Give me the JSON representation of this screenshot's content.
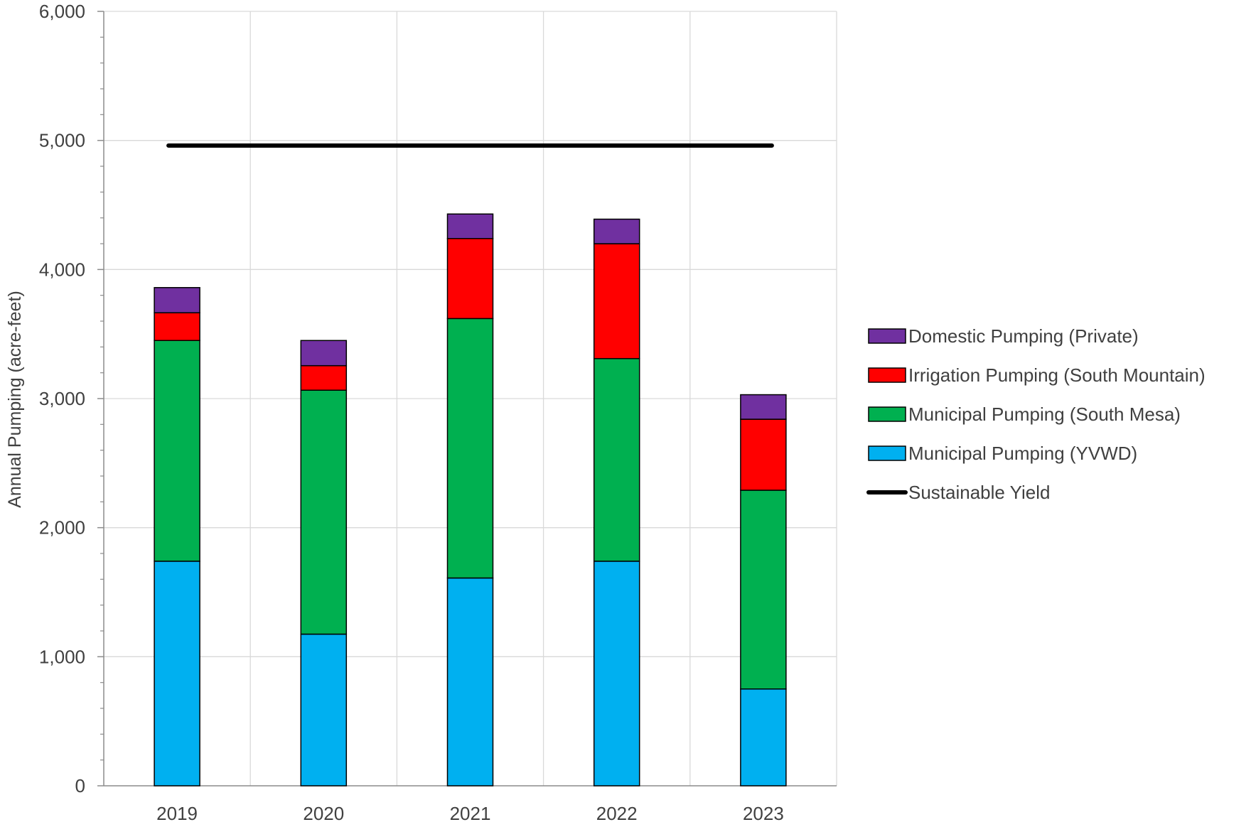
{
  "chart_data": {
    "type": "bar",
    "stacked": true,
    "categories": [
      "2019",
      "2020",
      "2021",
      "2022",
      "2023"
    ],
    "series": [
      {
        "name": "Municipal Pumping (YVWD)",
        "color": "#00B0F0",
        "values": [
          1740,
          1175,
          1610,
          1740,
          750
        ]
      },
      {
        "name": "Municipal Pumping (South Mesa)",
        "color": "#00B050",
        "values": [
          1710,
          1890,
          2010,
          1570,
          1540
        ]
      },
      {
        "name": "Irrigation Pumping (South Mountain)",
        "color": "#FF0000",
        "values": [
          215,
          190,
          620,
          890,
          550
        ]
      },
      {
        "name": "Domestic Pumping (Private)",
        "color": "#7030A0",
        "values": [
          195,
          195,
          190,
          190,
          190
        ]
      }
    ],
    "reference_line": {
      "name": "Sustainable Yield",
      "value": 4960,
      "color": "#000000"
    },
    "ylabel": "Annual Pumping (acre-feet)",
    "xlabel": "",
    "title": "",
    "ylim": [
      0,
      6000
    ],
    "yticks": [
      0,
      1000,
      2000,
      3000,
      4000,
      5000,
      6000
    ],
    "ytick_labels": [
      "0",
      "1,000",
      "2,000",
      "3,000",
      "4,000",
      "5,000",
      "6,000"
    ],
    "grid": true,
    "legend_position": "right",
    "legend_order": [
      "Domestic Pumping (Private)",
      "Irrigation Pumping (South Mountain)",
      "Municipal Pumping (South Mesa)",
      "Municipal Pumping (YVWD)",
      "Sustainable Yield"
    ]
  }
}
